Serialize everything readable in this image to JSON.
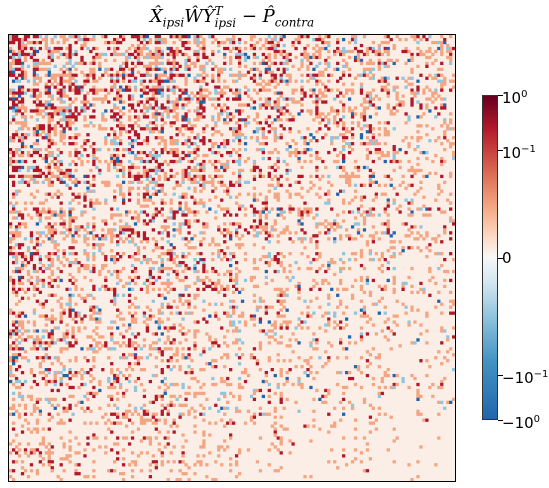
{
  "chart_data": {
    "type": "heatmap",
    "title": "X̂ipsiŴŶipsiT − P̂contra",
    "title_parts": {
      "a": "X̂",
      "a_sub": "ipsi",
      "b": "ŴŶ",
      "b_sub": "ipsi",
      "b_sup": "T",
      "c": " − P̂",
      "c_sub": "contra"
    },
    "colorscale": "RdBu_r (symlog)",
    "vmin": -1,
    "vmax": 1,
    "colorbar_ticks": [
      {
        "value": 1,
        "base": "10",
        "exp": "0"
      },
      {
        "value": 0.1,
        "base": "10",
        "exp": "−1"
      },
      {
        "value": 0,
        "base": "0",
        "exp": ""
      },
      {
        "value": -0.1,
        "base": "−10",
        "exp": "−1"
      },
      {
        "value": -1,
        "base": "−10",
        "exp": "0"
      }
    ],
    "colors": {
      "strong_positive": "#b2182b",
      "mild_positive": "#f4a582",
      "background": "#fbeee6",
      "mild_negative": "#92c5de",
      "strong_negative": "#2166ac"
    },
    "grid": false,
    "legend_placement": "right"
  }
}
